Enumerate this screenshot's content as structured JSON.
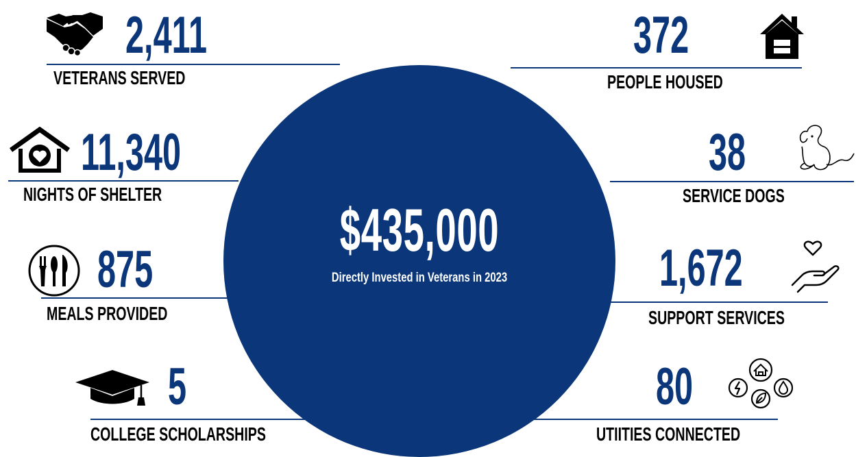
{
  "center": {
    "amount": "$435,000",
    "caption": "Directly Invested in Veterans in 2023"
  },
  "stats_left": [
    {
      "value": "2,411",
      "label": "VETERANS SERVED",
      "icon": "handshake-icon"
    },
    {
      "value": "11,340",
      "label": "NIGHTS OF SHELTER",
      "icon": "house-heart-icon"
    },
    {
      "value": "875",
      "label": "MEALS PROVIDED",
      "icon": "plate-utensils-icon"
    },
    {
      "value": "5",
      "label": "COLLEGE SCHOLARSHIPS",
      "icon": "graduation-cap-icon"
    }
  ],
  "stats_right": [
    {
      "value": "372",
      "label": "PEOPLE HOUSED",
      "icon": "house-icon"
    },
    {
      "value": "38",
      "label": "SERVICE DOGS",
      "icon": "dog-icon"
    },
    {
      "value": "1,672",
      "label": "SUPPORT SERVICES",
      "icon": "hand-heart-icon"
    },
    {
      "value": "80",
      "label": "UTIITIES CONNECTED",
      "icon": "utilities-icon"
    }
  ],
  "colors": {
    "brand_navy": "#0b377a",
    "label_black": "#000000",
    "background": "#ffffff"
  }
}
